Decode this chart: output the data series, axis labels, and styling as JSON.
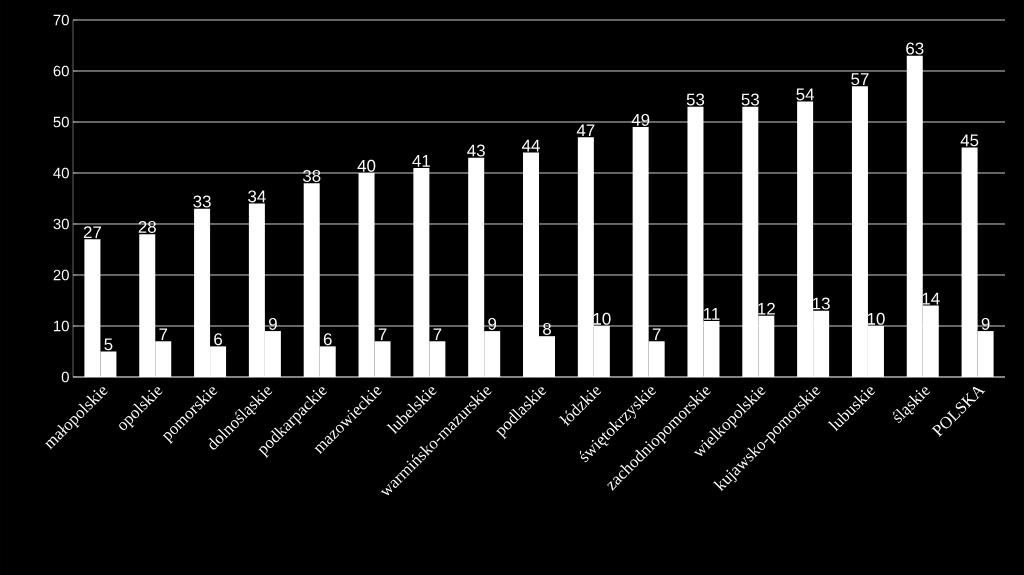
{
  "chart_data": {
    "type": "bar",
    "categories": [
      "małopolskie",
      "opolskie",
      "pomorskie",
      "dolnośląskie",
      "podkarpackie",
      "mazowieckie",
      "lubelskie",
      "warmińsko-mazurskie",
      "podlaskie",
      "łódzkie",
      "świętokrzyskie",
      "zachodniopomorskie",
      "wielkopolskie",
      "kujawsko-pomorskie",
      "lubuskie",
      "śląskie",
      "POLSKA"
    ],
    "series": [
      {
        "color": "#ffffff",
        "values": [
          27,
          28,
          33,
          34,
          38,
          40,
          41,
          43,
          44,
          47,
          49,
          53,
          53,
          54,
          57,
          63,
          45
        ]
      },
      {
        "color": "#ffffff",
        "values": [
          5,
          7,
          6,
          9,
          6,
          7,
          7,
          9,
          8,
          10,
          7,
          11,
          12,
          13,
          10,
          14,
          9
        ]
      }
    ],
    "ylim": [
      0,
      70
    ],
    "yticks": [
      0,
      10,
      20,
      30,
      40,
      50,
      60,
      70
    ],
    "grid": "y",
    "data_labels": true
  }
}
